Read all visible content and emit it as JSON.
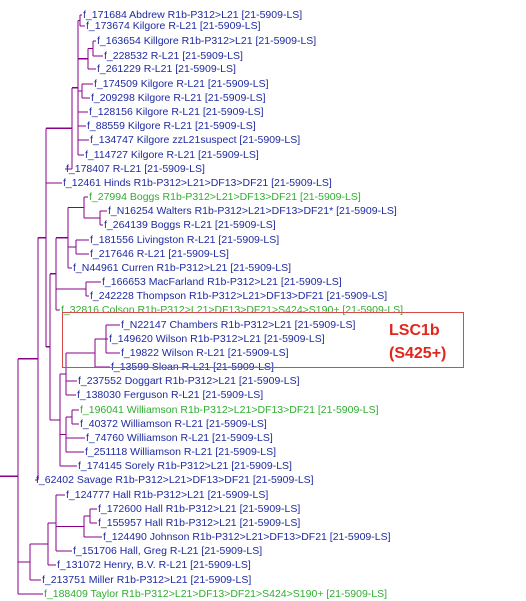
{
  "colors": {
    "tree": "#8b008b",
    "leaf_default": "#1f2aa0",
    "leaf_green": "#2fae2f",
    "highlight_border": "#d84a4a",
    "highlight_text": "#e1261c"
  },
  "leaves": [
    {
      "label": "f_171684 Abdrew R1b-P312>L21 [21-5909-LS]",
      "color": "default"
    },
    {
      "label": "f_173674 Kilgore R-L21 [21-5909-LS]",
      "color": "default"
    },
    {
      "label": "f_163654 Killgore R1b-P312>L21 [21-5909-LS]",
      "color": "default"
    },
    {
      "label": "f_228532  R-L21 [21-5909-LS]",
      "color": "default"
    },
    {
      "label": "f_261229  R-L21 [21-5909-LS]",
      "color": "default"
    },
    {
      "label": "f_174509 Kilgore R-L21 [21-5909-LS]",
      "color": "default"
    },
    {
      "label": "f_209298 Kilgore R-L21 [21-5909-LS]",
      "color": "default"
    },
    {
      "label": "f_128156 Kilgore R-L21 [21-5909-LS]",
      "color": "default"
    },
    {
      "label": "f_88559 Kilgore R-L21 [21-5909-LS]",
      "color": "default"
    },
    {
      "label": "f_134747 Kilgore zzL21suspect [21-5909-LS]",
      "color": "default"
    },
    {
      "label": "f_114727 Kilgore R-L21 [21-5909-LS]",
      "color": "default"
    },
    {
      "label": "f_178407  R-L21 [21-5909-LS]",
      "color": "default"
    },
    {
      "label": "f_12461 Hinds R1b-P312>L21>DF13>DF21 [21-5909-LS]",
      "color": "default"
    },
    {
      "label": "f_27994 Boggs R1b-P312>L21>DF13>DF21 [21-5909-LS]",
      "color": "green"
    },
    {
      "label": "f_N16254 Walters R1b-P312>L21>DF13>DF21* [21-5909-LS]",
      "color": "default"
    },
    {
      "label": "f_264139 Boggs R-L21 [21-5909-LS]",
      "color": "default"
    },
    {
      "label": "f_181556 Livingston R-L21 [21-5909-LS]",
      "color": "default"
    },
    {
      "label": "f_217646  R-L21 [21-5909-LS]",
      "color": "default"
    },
    {
      "label": "f_N44961 Curren R1b-P312>L21 [21-5909-LS]",
      "color": "default"
    },
    {
      "label": "f_166653 MacFarland  R1b-P312>L21 [21-5909-LS]",
      "color": "default"
    },
    {
      "label": "f_242228 Thompson R1b-P312>L21>DF13>DF21 [21-5909-LS]",
      "color": "default"
    },
    {
      "label": "f_32816 Colson R1b-P312>L21>DF13>DF21>S424>S190+ [21-5909-LS]",
      "color": "green"
    },
    {
      "label": "f_N22147 Chambers R1b-P312>L21 [21-5909-LS]",
      "color": "default"
    },
    {
      "label": "f_149620 Wilson R1b-P312>L21 [21-5909-LS]",
      "color": "default"
    },
    {
      "label": "f_19822 Wilson R-L21 [21-5909-LS]",
      "color": "default"
    },
    {
      "label": "f_13599 Sloan R-L21 [21-5909-LS]",
      "color": "default"
    },
    {
      "label": "f_237552 Doggart R1b-P312>L21 [21-5909-LS]",
      "color": "default"
    },
    {
      "label": "f_138030 Ferguson R-L21 [21-5909-LS]",
      "color": "default"
    },
    {
      "label": "f_196041 Williamson R1b-P312>L21>DF13>DF21 [21-5909-LS]",
      "color": "green"
    },
    {
      "label": "f_40372 Williamson R-L21 [21-5909-LS]",
      "color": "default"
    },
    {
      "label": "f_74760 Williamson R-L21 [21-5909-LS]",
      "color": "default"
    },
    {
      "label": "f_251118 Williamson R-L21 [21-5909-LS]",
      "color": "default"
    },
    {
      "label": "f_174145 Sorely R1b-P312>L21 [21-5909-LS]",
      "color": "default"
    },
    {
      "label": "f_62402 Savage R1b-P312>L21>DF13>DF21 [21-5909-LS]",
      "color": "default"
    },
    {
      "label": "f_124777 Hall R1b-P312>L21 [21-5909-LS]",
      "color": "default"
    },
    {
      "label": "f_172600 Hall R1b-P312>L21 [21-5909-LS]",
      "color": "default"
    },
    {
      "label": "f_155957 Hall R1b-P312>L21 [21-5909-LS]",
      "color": "default"
    },
    {
      "label": "f_124490 Johnson R1b-P312>L21>DF13>DF21 [21-5909-LS]",
      "color": "default"
    },
    {
      "label": "f_151706 Hall, Greg R-L21 [21-5909-LS]",
      "color": "default"
    },
    {
      "label": "f_131072 Henry, B.V. R-L21 [21-5909-LS]",
      "color": "default"
    },
    {
      "label": "f_213751 Miller R1b-P312>L21 [21-5909-LS]",
      "color": "default"
    },
    {
      "label": "f_188409 Taylor R1b-P312>L21>DF13>DF21>S424>S190+ [21-5909-LS]",
      "color": "green"
    }
  ],
  "highlight": {
    "line1": "LSC1b",
    "line2": "(S425+)"
  }
}
